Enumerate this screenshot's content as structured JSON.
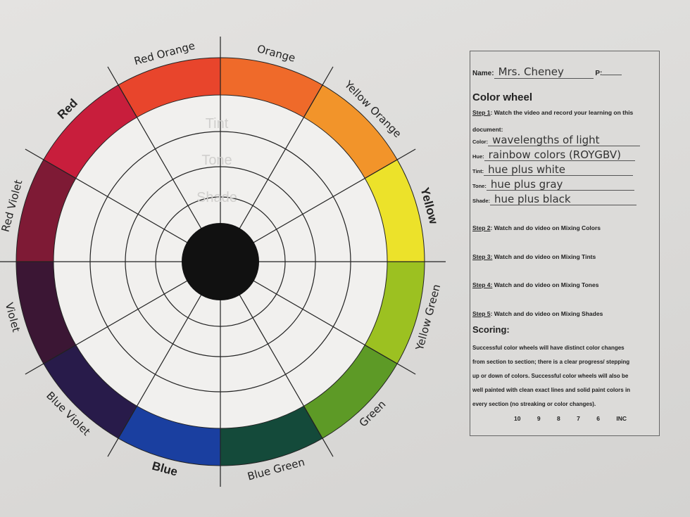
{
  "wheel": {
    "segments": [
      {
        "label": "Orange",
        "color": "#ef6a2a"
      },
      {
        "label": "Red Orange",
        "color": "#e8452c"
      },
      {
        "label": "Red",
        "color": "#c81e3c"
      },
      {
        "label": "Red Violet",
        "color": "#7e1a35"
      },
      {
        "label": "Violet",
        "color": "#3b1634"
      },
      {
        "label": "Blue Violet",
        "color": "#281b4a"
      },
      {
        "label": "Blue",
        "color": "#1a3fa0"
      },
      {
        "label": "Blue Green",
        "color": "#144a3a"
      },
      {
        "label": "Green",
        "color": "#5d9a26"
      },
      {
        "label": "Yellow Green",
        "color": "#9cc121"
      },
      {
        "label": "Yellow",
        "color": "#ece22a"
      },
      {
        "label": "Yellow Orange",
        "color": "#f2942a"
      }
    ],
    "bold_labels": [
      "Red",
      "Yellow",
      "Blue"
    ],
    "ring_labels": [
      "Tint",
      "Tone",
      "Shade"
    ]
  },
  "panel": {
    "name_label": "Name:",
    "name_value": "Mrs. Cheney",
    "period_label": "P:",
    "title": "Color wheel",
    "step1_label": "Step 1",
    "step1_text": ": Watch the video and record your learning on this",
    "step1_text2": "document:",
    "fields": [
      {
        "label": "Color:",
        "value": "wavelengths of light"
      },
      {
        "label": "Hue:",
        "value": "rainbow colors (ROYGBV)"
      },
      {
        "label": "Tint:",
        "value": "hue plus white"
      },
      {
        "label": "Tone:",
        "value": "hue plus gray"
      },
      {
        "label": "Shade:",
        "value": "hue plus black"
      }
    ],
    "steps": [
      {
        "label": "Step 2",
        "text": ": Watch and do video on Mixing Colors"
      },
      {
        "label": "Step 3:",
        "text": " Watch and do video on Mixing Tints"
      },
      {
        "label": "Step 4:",
        "text": " Watch and do video on Mixing Tones"
      },
      {
        "label": "Step 5",
        "text": ": Watch and do video on Mixing Shades"
      }
    ],
    "scoring_title": "Scoring:",
    "scoring_lines": [
      "Successful color wheels will have distinct color changes",
      "from section to section; there is a clear progress/ stepping",
      "up or down of colors. Successful color wheels will also be",
      "well painted with clean exact lines and solid paint colors in",
      "every section (no streaking or color changes)."
    ],
    "scores": [
      "10",
      "9",
      "8",
      "7",
      "6",
      "INC"
    ]
  }
}
